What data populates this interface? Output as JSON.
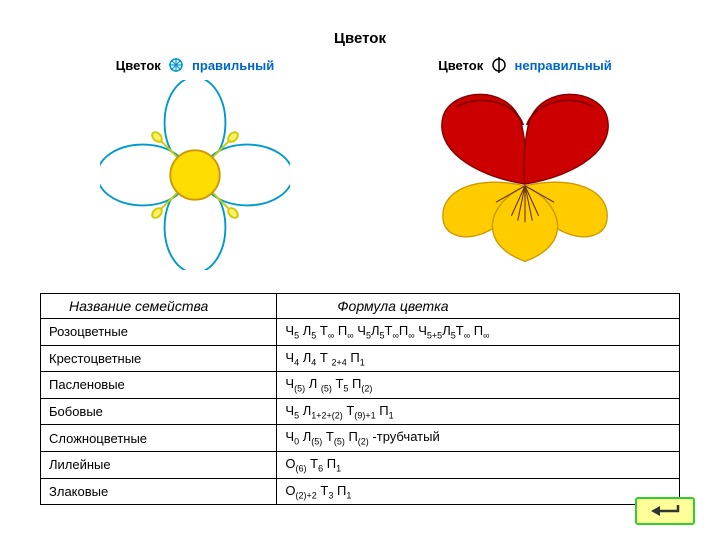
{
  "title": "Цветок",
  "left_flower": {
    "label_dark": "Цветок",
    "label_blue": "правильный",
    "petal_color": "#ffffff",
    "petal_outline": "#0099cc",
    "center_color": "#ffdd00",
    "center_outline": "#cc9900",
    "stamen_color": "#cccc00"
  },
  "right_flower": {
    "label_dark": "Цветок",
    "label_blue": "неправильный",
    "upper_petal_color": "#cc0000",
    "upper_petal_shade": "#990000",
    "lower_petal_color": "#ffcc00",
    "lower_petal_shade": "#cc9900",
    "center_lines": "#663300"
  },
  "symbol_radial": {
    "stroke": "#0099cc"
  },
  "symbol_bilateral": {
    "stroke": "#000000"
  },
  "table": {
    "headers": {
      "name": "Название семейства",
      "formula": "Формула цветка"
    },
    "rows": [
      {
        "name": "Розоцветные",
        "formula_parts": [
          "Ч",
          "5",
          " Л",
          "5",
          " Т",
          "∞",
          " П",
          "∞",
          "   Ч",
          "5",
          "Л",
          "5",
          "Т",
          "∞",
          "П",
          "∞",
          "   Ч",
          "5+5",
          "Л",
          "5",
          "Т",
          "∞",
          " П",
          "∞"
        ]
      },
      {
        "name": "Крестоцветные",
        "formula_parts": [
          "Ч",
          "4",
          " Л",
          "4",
          " Т ",
          "2+4",
          " П",
          "1"
        ]
      },
      {
        "name": "Пасленовые",
        "formula_parts": [
          "Ч",
          "(5)",
          " Л ",
          "(5)",
          " Т",
          "5",
          " П",
          "(2)"
        ]
      },
      {
        "name": "Бобовые",
        "formula_parts": [
          "Ч",
          "5",
          " Л",
          "1+2+(2)",
          " Т",
          "(9)+1",
          " П",
          "1"
        ]
      },
      {
        "name": "Сложноцветные",
        "formula_parts": [
          "Ч",
          "0",
          " Л",
          "(5)",
          " Т",
          "(5)",
          " П",
          "(2)",
          " -трубчатый"
        ]
      },
      {
        "name": "Лилейные",
        "formula_parts": [
          "О",
          "(6)",
          " Т",
          "6",
          " П",
          "1"
        ]
      },
      {
        "name": "Злаковые",
        "formula_parts": [
          "О",
          "(2)+2",
          " Т",
          "3",
          " П",
          "1"
        ]
      }
    ]
  },
  "nav": {
    "bg": "#ffff99",
    "border": "#33cc33",
    "arrow": "#333333"
  }
}
